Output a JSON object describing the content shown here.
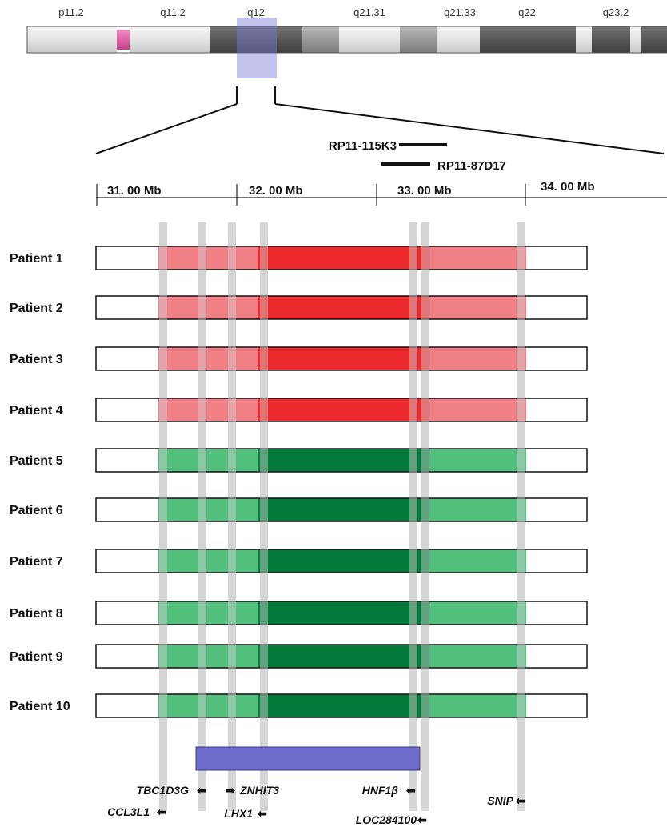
{
  "ideogram": {
    "bands": [
      {
        "label": "p11.2"
      },
      {
        "label": "q11.2"
      },
      {
        "label": "q12"
      },
      {
        "label": "q21.31"
      },
      {
        "label": "q21.33"
      },
      {
        "label": "q22"
      },
      {
        "label": "q23.2"
      }
    ]
  },
  "clones": [
    {
      "label": "RP11-115K3"
    },
    {
      "label": "RP11-87D17"
    }
  ],
  "scale": {
    "ticks": [
      {
        "label": "31. 00 Mb"
      },
      {
        "label": "32. 00 Mb"
      },
      {
        "label": "33. 00 Mb"
      },
      {
        "label": "34. 00 Mb"
      }
    ]
  },
  "patients": [
    {
      "label": "Patient 1",
      "group": "red"
    },
    {
      "label": "Patient 2",
      "group": "red"
    },
    {
      "label": "Patient 3",
      "group": "red"
    },
    {
      "label": "Patient 4",
      "group": "red"
    },
    {
      "label": "Patient 5",
      "group": "green"
    },
    {
      "label": "Patient 6",
      "group": "green"
    },
    {
      "label": "Patient 7",
      "group": "green"
    },
    {
      "label": "Patient 8",
      "group": "green"
    },
    {
      "label": "Patient 9",
      "group": "green"
    },
    {
      "label": "Patient 10",
      "group": "green"
    }
  ],
  "genes": [
    {
      "label": "TBC1D3G",
      "arrow": "left"
    },
    {
      "label": "ZNHIT3",
      "arrow": "right"
    },
    {
      "label": "HNF1β",
      "arrow": "left"
    },
    {
      "label": "SNIP",
      "arrow": "left"
    },
    {
      "label": "CCL3L1",
      "arrow": "left"
    },
    {
      "label": "LHX1",
      "arrow": "left"
    },
    {
      "label": "LOC284100",
      "arrow": "left"
    }
  ],
  "colors": {
    "red_light": "#f07f86",
    "red_dark": "#ec2a2e",
    "green_light": "#52bf7c",
    "green_dark": "#047a3a",
    "highlight_region": "#6d6ccb",
    "gene_marker": "#cfcfcf",
    "centromere": "#e064a5"
  }
}
